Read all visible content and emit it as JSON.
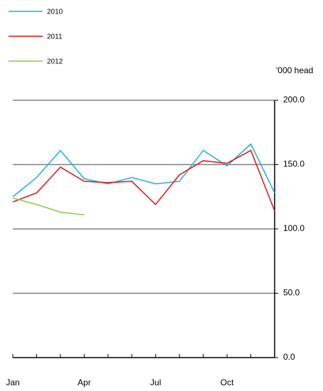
{
  "chart_data": {
    "type": "line",
    "y_unit_label": "'000 head",
    "categories": [
      "Jan",
      null,
      null,
      "Apr",
      null,
      null,
      "Jul",
      null,
      null,
      "Oct",
      null,
      null
    ],
    "series": [
      {
        "name": "2010",
        "color": "#1ab0e0",
        "values": [
          125,
          140,
          161,
          139,
          135,
          140,
          135,
          137,
          161,
          149,
          166,
          128
        ]
      },
      {
        "name": "2011",
        "color": "#e81010",
        "values": [
          121,
          128,
          148,
          137,
          136,
          137,
          119,
          142,
          153,
          151,
          161,
          114
        ]
      },
      {
        "name": "2012",
        "color": "#88cc44",
        "values": [
          124,
          119,
          113,
          111,
          null,
          null,
          null,
          null,
          null,
          null,
          null,
          null
        ]
      }
    ],
    "ylim": [
      0,
      200
    ],
    "yticks": [
      {
        "value": 0,
        "label": "0.0"
      },
      {
        "value": 50,
        "label": "50.0"
      },
      {
        "value": 100,
        "label": "100.0"
      },
      {
        "value": 150,
        "label": "150.0"
      },
      {
        "value": 200,
        "label": "200.0"
      }
    ],
    "grid": true,
    "legend": "top-left"
  }
}
